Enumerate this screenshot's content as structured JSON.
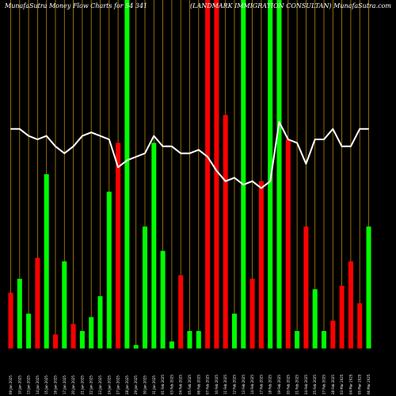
{
  "chart_data": {
    "type": "bar",
    "title_left": "MunafaSutra  Money Flow  Charts for 54 341",
    "title_right": "(LANDMARK IMMIGRATION CONSULTAN) MunafaSutra.com",
    "ylim": [
      0,
      100
    ],
    "grid": "vertical",
    "colors": {
      "up": "#00ff00",
      "down": "#ff0000",
      "line": "#ffffff",
      "grid": "#b8860b",
      "background": "#000000"
    },
    "categories": [
      "09 Jan 2025",
      "10 Jan 2025",
      "13 Jan 2025",
      "14 Jan 2025",
      "15 Jan 2025",
      "16 Jan 2025",
      "17 Jan 2025",
      "20 Jan 2025",
      "21 Jan 2025",
      "22 Jan 2025",
      "23 Jan 2025",
      "24 Jan 2025",
      "27 Jan 2025",
      "28 Jan 2025",
      "29 Jan 2025",
      "30 Jan 2025",
      "31 Jan 2025",
      "01 Feb 2025",
      "03 Feb 2025",
      "04 Feb 2025",
      "05 Feb 2025",
      "06 Feb 2025",
      "07 Feb 2025",
      "10 Feb 2025",
      "11 Feb 2025",
      "12 Feb 2025",
      "13 Feb 2025",
      "14 Feb 2025",
      "17 Feb 2025",
      "18 Feb 2025",
      "19 Feb 2025",
      "20 Feb 2025",
      "21 Feb 2025",
      "24 Feb 2025",
      "25 Feb 2025",
      "27 Feb 2025",
      "28 Feb 2025",
      "03 Mar 2025",
      "04 Mar 2025",
      "05 Mar 2025",
      "06 Mar 2025"
    ],
    "bars": [
      {
        "value": 16,
        "dir": "down"
      },
      {
        "value": 20,
        "dir": "up"
      },
      {
        "value": 10,
        "dir": "up"
      },
      {
        "value": 26,
        "dir": "down"
      },
      {
        "value": 50,
        "dir": "up"
      },
      {
        "value": 4,
        "dir": "down"
      },
      {
        "value": 25,
        "dir": "up"
      },
      {
        "value": 7,
        "dir": "down"
      },
      {
        "value": 5,
        "dir": "up"
      },
      {
        "value": 9,
        "dir": "up"
      },
      {
        "value": 15,
        "dir": "up"
      },
      {
        "value": 45,
        "dir": "up"
      },
      {
        "value": 59,
        "dir": "down"
      },
      {
        "value": 100,
        "dir": "up"
      },
      {
        "value": 1,
        "dir": "up"
      },
      {
        "value": 35,
        "dir": "up"
      },
      {
        "value": 59,
        "dir": "up"
      },
      {
        "value": 28,
        "dir": "up"
      },
      {
        "value": 2,
        "dir": "up"
      },
      {
        "value": 21,
        "dir": "down"
      },
      {
        "value": 5,
        "dir": "up"
      },
      {
        "value": 5,
        "dir": "up"
      },
      {
        "value": 100,
        "dir": "down"
      },
      {
        "value": 100,
        "dir": "down"
      },
      {
        "value": 67,
        "dir": "down"
      },
      {
        "value": 10,
        "dir": "up"
      },
      {
        "value": 100,
        "dir": "up"
      },
      {
        "value": 20,
        "dir": "down"
      },
      {
        "value": 48,
        "dir": "down"
      },
      {
        "value": 100,
        "dir": "up"
      },
      {
        "value": 100,
        "dir": "up"
      },
      {
        "value": 60,
        "dir": "down"
      },
      {
        "value": 5,
        "dir": "up"
      },
      {
        "value": 35,
        "dir": "down"
      },
      {
        "value": 17,
        "dir": "up"
      },
      {
        "value": 5,
        "dir": "up"
      },
      {
        "value": 8,
        "dir": "down"
      },
      {
        "value": 18,
        "dir": "down"
      },
      {
        "value": 25,
        "dir": "down"
      },
      {
        "value": 13,
        "dir": "down"
      },
      {
        "value": 35,
        "dir": "up"
      }
    ],
    "line": [
      63,
      63,
      61,
      60,
      61,
      58,
      56,
      58,
      61,
      62,
      61,
      60,
      52,
      54,
      55,
      56,
      61,
      58,
      58,
      56,
      56,
      57,
      55,
      51,
      48,
      49,
      47,
      48,
      46,
      48,
      65,
      60,
      59,
      53,
      60,
      60,
      63,
      58,
      58,
      63,
      63
    ]
  }
}
